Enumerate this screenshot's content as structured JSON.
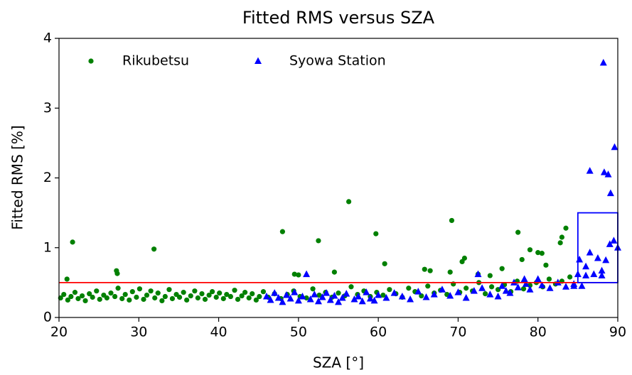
{
  "chart_data": {
    "type": "scatter",
    "title": "Fitted RMS versus SZA",
    "x_label": "SZA [°]",
    "y_label": "Fitted RMS [%]",
    "xlim": [
      20,
      90
    ],
    "ylim": [
      0,
      4
    ],
    "xticks": [
      20,
      30,
      40,
      50,
      60,
      70,
      80,
      90
    ],
    "yticks": [
      0,
      1,
      2,
      3,
      4
    ],
    "legend": "upper left",
    "hline": {
      "y": 0.5,
      "color": "#ff0000"
    },
    "box": {
      "x": [
        85,
        90
      ],
      "y": [
        0.5,
        1.5
      ],
      "color": "#0000ff"
    },
    "series": [
      {
        "name": "Rikubetsu",
        "color": "#008000",
        "marker": "circle",
        "x": [
          20.2,
          20.6,
          21.1,
          21.5,
          22,
          22.4,
          22.9,
          23.3,
          23.8,
          24.2,
          24.7,
          25.1,
          25.6,
          26,
          26.5,
          27,
          27.4,
          27.9,
          28.3,
          28.8,
          29.2,
          29.7,
          30.1,
          30.6,
          31,
          31.5,
          32,
          32.4,
          32.9,
          33.3,
          33.8,
          34.2,
          34.7,
          35.1,
          35.6,
          36,
          36.5,
          37,
          37.4,
          37.9,
          38.3,
          38.8,
          39.2,
          39.7,
          40.1,
          40.6,
          41,
          41.5,
          42,
          42.4,
          42.9,
          43.3,
          43.8,
          44.2,
          44.7,
          45.1,
          45.6,
          46.2,
          47,
          47.8,
          48.6,
          49.4,
          50.2,
          51,
          51.8,
          52.6,
          53.4,
          54.2,
          55,
          55.8,
          56.6,
          57.4,
          58.2,
          59,
          59.8,
          60.6,
          61.4,
          62.2,
          63,
          63.8,
          64.6,
          65.4,
          66.2,
          67,
          67.8,
          68.6,
          69.4,
          70.2,
          71,
          71.8,
          72.6,
          73.4,
          74.2,
          75,
          75.8,
          76.6,
          77.4,
          78.2,
          79,
          79.8,
          80.6,
          81.4,
          82.2,
          83,
          84,
          21.7,
          21,
          27.2,
          27.3,
          31.9,
          48,
          52.5,
          56.3,
          59.7,
          69.2,
          60.8,
          49.5,
          50,
          54.5,
          70.8,
          70.5,
          77.5,
          78,
          79,
          80,
          80.5,
          83.5,
          83,
          82.8,
          81,
          75.5,
          65.8,
          66.5,
          69,
          72.5,
          74
        ],
        "values": [
          0.28,
          0.33,
          0.25,
          0.3,
          0.36,
          0.27,
          0.31,
          0.24,
          0.34,
          0.29,
          0.38,
          0.26,
          0.32,
          0.28,
          0.35,
          0.3,
          0.42,
          0.27,
          0.33,
          0.25,
          0.37,
          0.29,
          0.41,
          0.26,
          0.32,
          0.38,
          0.28,
          0.35,
          0.24,
          0.3,
          0.4,
          0.27,
          0.33,
          0.29,
          0.36,
          0.25,
          0.31,
          0.38,
          0.28,
          0.34,
          0.26,
          0.32,
          0.37,
          0.29,
          0.35,
          0.27,
          0.33,
          0.3,
          0.39,
          0.26,
          0.31,
          0.36,
          0.28,
          0.34,
          0.25,
          0.3,
          0.37,
          0.29,
          0.34,
          0.27,
          0.33,
          0.38,
          0.3,
          0.28,
          0.41,
          0.32,
          0.36,
          0.29,
          0.35,
          0.31,
          0.44,
          0.33,
          0.38,
          0.3,
          0.36,
          0.32,
          0.4,
          0.34,
          0.29,
          0.42,
          0.37,
          0.31,
          0.45,
          0.35,
          0.39,
          0.33,
          0.48,
          0.36,
          0.42,
          0.38,
          0.5,
          0.34,
          0.44,
          0.4,
          0.47,
          0.37,
          0.52,
          0.41,
          0.46,
          0.5,
          0.44,
          0.55,
          0.48,
          0.52,
          0.58,
          1.08,
          0.55,
          0.67,
          0.63,
          0.98,
          1.23,
          1.1,
          1.66,
          1.2,
          1.39,
          0.77,
          0.62,
          0.61,
          0.65,
          0.85,
          0.8,
          1.22,
          0.83,
          0.97,
          0.93,
          0.92,
          1.28,
          1.15,
          1.07,
          0.75,
          0.7,
          0.69,
          0.67,
          0.65,
          0.62,
          0.6
        ]
      },
      {
        "name": "Syowa Station",
        "color": "#0000ff",
        "marker": "triangle",
        "x": [
          46,
          46.5,
          47,
          47.5,
          48,
          48.5,
          49,
          49.5,
          50,
          50.5,
          51.5,
          52,
          52.5,
          53,
          53.5,
          54,
          54.5,
          55,
          55.5,
          56,
          57,
          57.5,
          58,
          58.5,
          59,
          59.5,
          60,
          61,
          62,
          63,
          64,
          65,
          66,
          67,
          68,
          69,
          70,
          71,
          72,
          73,
          74,
          75,
          75.5,
          76,
          76.5,
          77.5,
          78.5,
          79,
          80.5,
          81.5,
          82.5,
          83.5,
          84.5,
          51,
          72.5,
          85.2,
          86,
          86.5,
          87.5,
          88,
          88.5,
          89,
          89.5,
          90,
          86.5,
          88.3,
          88.8,
          89.1,
          89.6,
          88.2,
          85,
          86,
          87,
          88,
          85.5,
          84.5,
          80,
          78.3,
          77
        ],
        "values": [
          0.3,
          0.25,
          0.35,
          0.28,
          0.22,
          0.32,
          0.27,
          0.36,
          0.24,
          0.3,
          0.26,
          0.33,
          0.23,
          0.29,
          0.35,
          0.25,
          0.31,
          0.22,
          0.28,
          0.34,
          0.26,
          0.3,
          0.23,
          0.36,
          0.27,
          0.24,
          0.32,
          0.28,
          0.35,
          0.3,
          0.26,
          0.37,
          0.29,
          0.33,
          0.4,
          0.31,
          0.36,
          0.28,
          0.38,
          0.42,
          0.33,
          0.3,
          0.45,
          0.38,
          0.35,
          0.43,
          0.48,
          0.4,
          0.46,
          0.42,
          0.5,
          0.44,
          0.48,
          0.62,
          0.62,
          0.83,
          0.73,
          0.93,
          0.85,
          0.67,
          0.82,
          1.05,
          1.1,
          1.0,
          2.1,
          2.08,
          2.05,
          1.78,
          2.44,
          3.65,
          0.62,
          0.6,
          0.62,
          0.6,
          0.45,
          0.45,
          0.55,
          0.55,
          0.5
        ]
      }
    ]
  }
}
